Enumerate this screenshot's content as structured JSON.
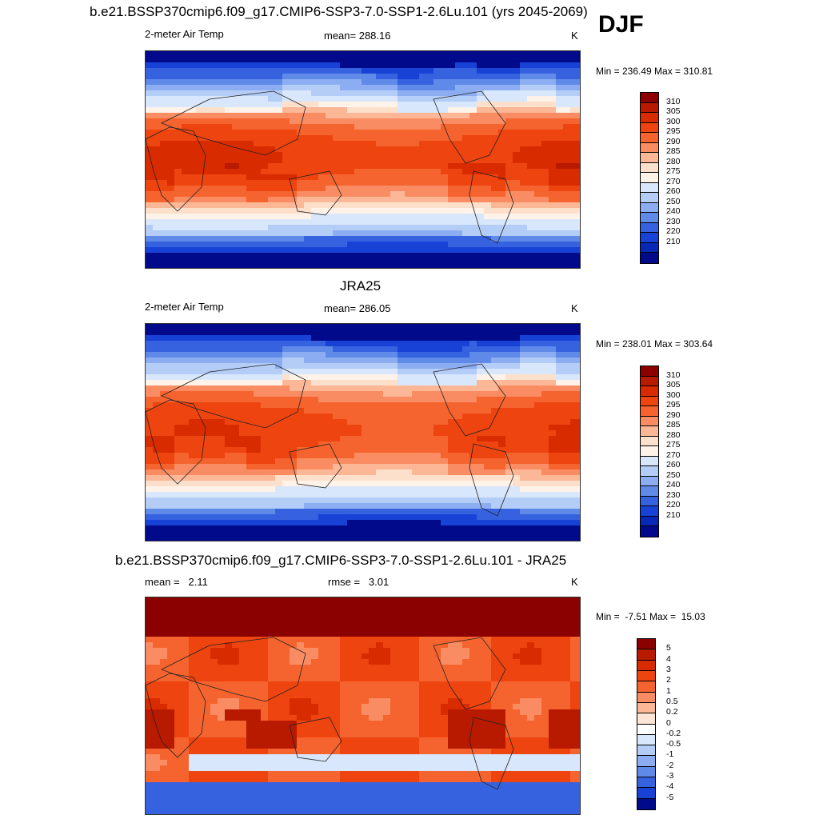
{
  "season": "DJF",
  "panels": [
    {
      "title": "b.e21.BSSP370cmip6.f09_g17.CMIP6-SSP3-7.0-SSP1-2.6Lu.101 (yrs 2045-2069)",
      "left_label": "2-meter Air Temp",
      "center_label": "mean= 288.16",
      "units": "K",
      "minmax": "Min = 236.49 Max = 310.81",
      "field": "model"
    },
    {
      "title": "JRA25",
      "left_label": "2-meter Air Temp",
      "center_label": "mean= 286.05",
      "units": "K",
      "minmax": "Min = 238.01 Max = 303.64",
      "field": "obs"
    },
    {
      "title": "b.e21.BSSP370cmip6.f09_g17.CMIP6-SSP3-7.0-SSP1-2.6Lu.101 - JRA25",
      "left_label": "mean =   2.11",
      "center_label": "rmse =   3.01",
      "units": "K",
      "minmax": "Min =  -7.51 Max =  15.03",
      "field": "diff"
    }
  ],
  "abs_colorbar": {
    "labels": [
      "310",
      "305",
      "300",
      "295",
      "290",
      "285",
      "280",
      "275",
      "270",
      "260",
      "250",
      "240",
      "230",
      "220",
      "210"
    ],
    "colors": [
      "#8b0000",
      "#b81a00",
      "#d92b00",
      "#ee4410",
      "#f5642f",
      "#f98c62",
      "#fcb896",
      "#fde0cc",
      "#fff2e8",
      "#d8e7fb",
      "#b4cdf7",
      "#8cadf1",
      "#5f8ae8",
      "#3662e0",
      "#1842d6",
      "#0a28b8",
      "#000a8a"
    ]
  },
  "diff_colorbar": {
    "labels": [
      "5",
      "4",
      "3",
      "2",
      "1",
      "0.5",
      "0.2",
      "0",
      "-0.2",
      "-0.5",
      "-1",
      "-2",
      "-3",
      "-4",
      "-5"
    ],
    "colors": [
      "#8b0000",
      "#b81a00",
      "#d92b00",
      "#ee4410",
      "#f5642f",
      "#f98c62",
      "#fcb896",
      "#fde4d4",
      "#ffffff",
      "#d8e7fb",
      "#b4cdf7",
      "#8cadf1",
      "#5f8ae8",
      "#3662e0",
      "#1842d6",
      "#000a8a"
    ]
  }
}
